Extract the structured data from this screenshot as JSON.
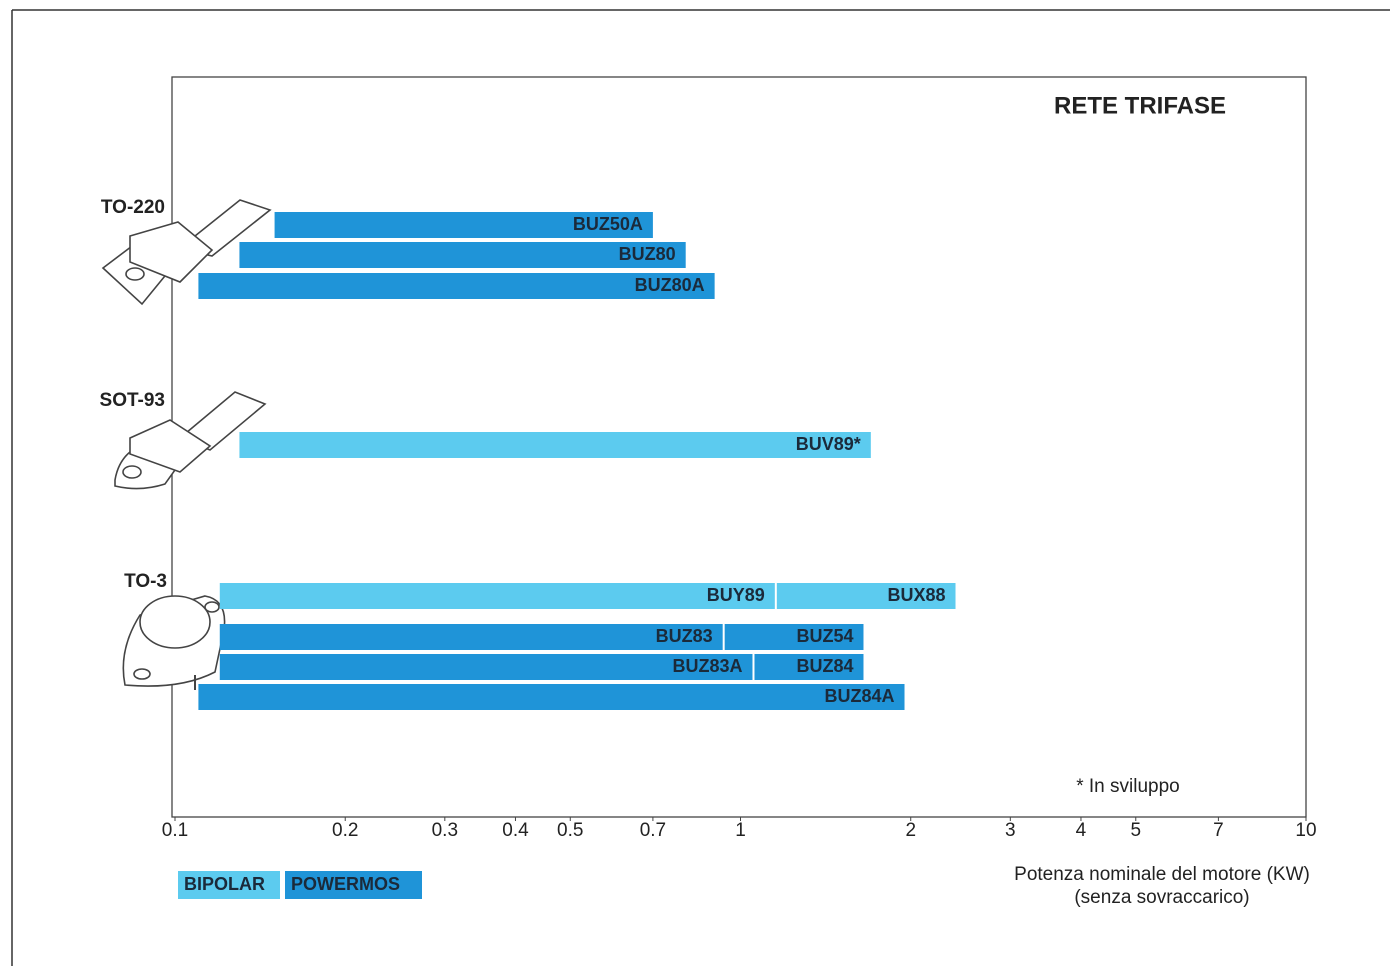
{
  "chart_data": {
    "type": "range-bar",
    "title": "RETE TRIFASE",
    "xlabel": [
      "Potenza nominale del motore (KW)",
      "(senza sovraccarico)"
    ],
    "annotation": "*  In sviluppo",
    "xscale": "log",
    "xlim": [
      0.1,
      10
    ],
    "xticks": [
      0.1,
      0.2,
      0.3,
      0.4,
      0.5,
      0.7,
      1,
      2,
      3,
      4,
      5,
      7,
      10
    ],
    "grid": false,
    "series": [
      {
        "name": "BIPOLAR",
        "color": "#5ccbef"
      },
      {
        "name": "POWERMOS",
        "color": "#1f94d8"
      }
    ],
    "groups": [
      {
        "name": "TO-220",
        "rows": [
          [
            {
              "label": "BUZ50A",
              "series": 1,
              "start": 0.15,
              "end": 0.7
            }
          ],
          [
            {
              "label": "BUZ80",
              "series": 1,
              "start": 0.13,
              "end": 0.8
            }
          ],
          [
            {
              "label": "BUZ80A",
              "series": 1,
              "start": 0.11,
              "end": 0.9
            }
          ]
        ]
      },
      {
        "name": "SOT-93",
        "rows": [
          [
            {
              "label": "BUV89*",
              "series": 0,
              "start": 0.13,
              "end": 1.7
            }
          ]
        ]
      },
      {
        "name": "TO-3",
        "rows": [
          [
            {
              "label": "BUY89",
              "series": 0,
              "start": 0.12,
              "end": 1.15
            },
            {
              "label": "BUX88",
              "series": 0,
              "start": 1.15,
              "end": 2.4
            }
          ],
          [
            {
              "label": "BUZ83",
              "series": 1,
              "start": 0.12,
              "end": 0.93
            },
            {
              "label": "BUZ54",
              "series": 1,
              "start": 0.93,
              "end": 1.65
            }
          ],
          [
            {
              "label": "BUZ83A",
              "series": 1,
              "start": 0.12,
              "end": 1.05
            },
            {
              "label": "BUZ84",
              "series": 1,
              "start": 1.05,
              "end": 1.65
            }
          ],
          [
            {
              "label": "BUZ84A",
              "series": 1,
              "start": 0.11,
              "end": 1.95
            }
          ]
        ]
      }
    ]
  }
}
